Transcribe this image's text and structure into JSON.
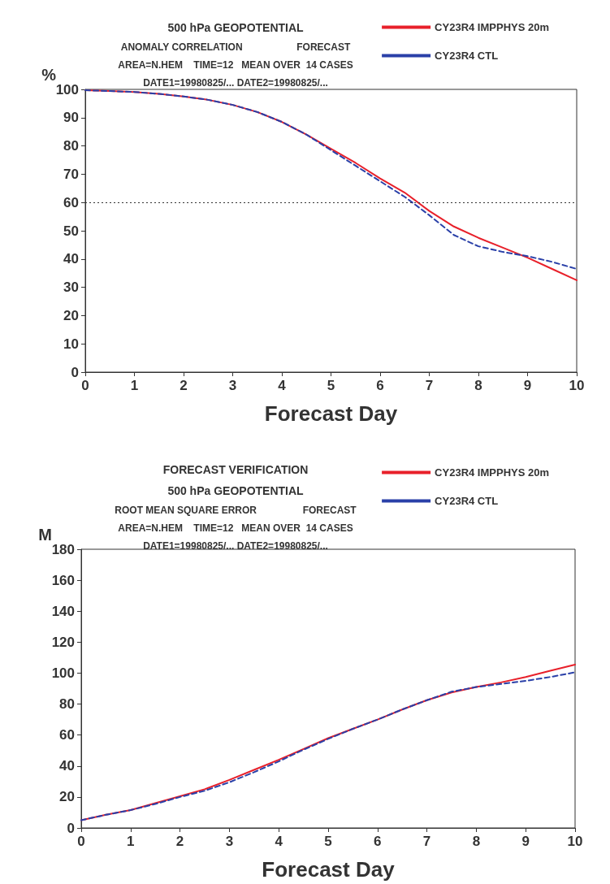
{
  "chart_data": [
    {
      "type": "line",
      "title": "500 hPa GEOPOTENTIAL",
      "subtitle": "ANOMALY CORRELATION                    FORECAST\nAREA=N.HEM    TIME=12   MEAN OVER  14 CASES\nDATE1=19980825/... DATE2=19980825/...",
      "xlabel": "Forecast Day",
      "ylabel": "%",
      "x": [
        0,
        0.5,
        1,
        1.5,
        2,
        2.5,
        3,
        3.5,
        4,
        4.5,
        5,
        5.5,
        6,
        6.5,
        7,
        7.5,
        8,
        8.5,
        9,
        9.5,
        10
      ],
      "series": [
        {
          "name": "CY23R4 IMPPHYS 20m",
          "color": "#e8202a",
          "line_style": "solid",
          "values": [
            99.7,
            99.4,
            99.1,
            98.4,
            97.5,
            96.3,
            94.5,
            92,
            88.5,
            84,
            79,
            74,
            68.5,
            63.5,
            57,
            51.5,
            47.5,
            44,
            40.5,
            36.5,
            32.5
          ]
        },
        {
          "name": "CY23R4 CTL",
          "color": "#2a40a8",
          "line_style": "dashed",
          "values": [
            99.7,
            99.4,
            99.1,
            98.4,
            97.5,
            96.3,
            94.5,
            92,
            88.5,
            84,
            78.5,
            73,
            67.5,
            62,
            55.5,
            48.5,
            44.5,
            42.5,
            41,
            39,
            36.5
          ]
        }
      ],
      "xlim": [
        0,
        10
      ],
      "xticks": [
        0,
        1,
        2,
        3,
        4,
        5,
        6,
        7,
        8,
        9,
        10
      ],
      "ylim": [
        0,
        100
      ],
      "yticks": [
        0,
        10,
        20,
        30,
        40,
        50,
        60,
        70,
        80,
        90,
        100
      ],
      "ref_lines": [
        {
          "axis": "y",
          "value": 60,
          "label": null,
          "color": "#333333",
          "line_style": "dotted"
        }
      ],
      "grid": false,
      "legend": "top right",
      "marker": "none"
    },
    {
      "type": "line",
      "title": "FORECAST VERIFICATION\n500 hPa GEOPOTENTIAL",
      "subtitle": "ROOT MEAN SQUARE ERROR                 FORECAST\nAREA=N.HEM    TIME=12   MEAN OVER  14 CASES\nDATE1=19980825/... DATE2=19980825/...",
      "xlabel": "Forecast Day",
      "ylabel": "M",
      "x": [
        0,
        0.5,
        1,
        1.5,
        2,
        2.5,
        3,
        3.5,
        4,
        4.5,
        5,
        5.5,
        6,
        6.5,
        7,
        7.5,
        8,
        8.5,
        9,
        9.5,
        10
      ],
      "series": [
        {
          "name": "CY23R4 IMPPHYS 20m",
          "color": "#e8202a",
          "line_style": "solid",
          "values": [
            5,
            8.5,
            11.5,
            16,
            20.5,
            25,
            31,
            37.5,
            44,
            51,
            58,
            64,
            70,
            76.5,
            82.5,
            87.5,
            91,
            94,
            97.5,
            101.5,
            105.5
          ]
        },
        {
          "name": "CY23R4 CTL",
          "color": "#2a40a8",
          "line_style": "dashed",
          "values": [
            5,
            8.5,
            11.5,
            15.5,
            20,
            24,
            29.5,
            36,
            43,
            50.5,
            57.5,
            64,
            70,
            76.5,
            82.5,
            88,
            91,
            93,
            95,
            97.5,
            100.5
          ]
        }
      ],
      "xlim": [
        0,
        10
      ],
      "xticks": [
        0,
        1,
        2,
        3,
        4,
        5,
        6,
        7,
        8,
        9,
        10
      ],
      "ylim": [
        0,
        180
      ],
      "yticks": [
        0,
        20,
        40,
        60,
        80,
        100,
        120,
        140,
        160,
        180
      ],
      "grid": false,
      "legend": "top right",
      "marker": "none"
    }
  ]
}
